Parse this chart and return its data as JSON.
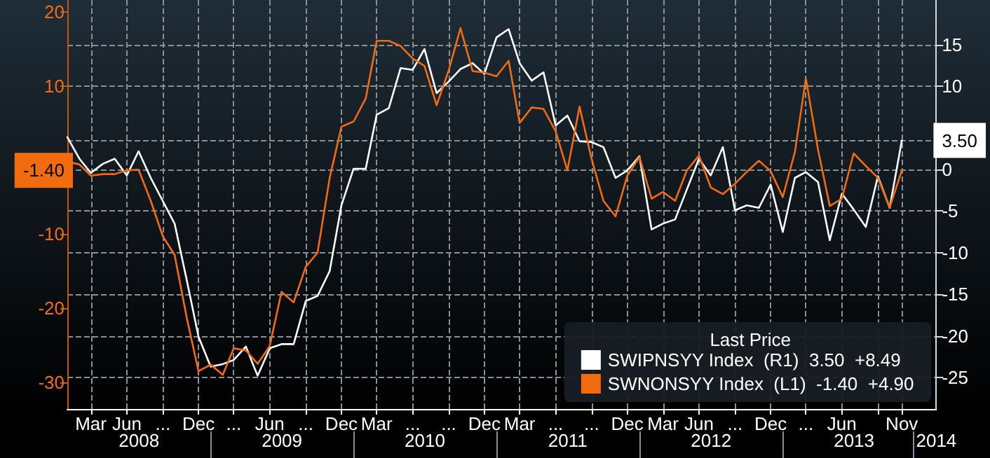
{
  "chart_data": {
    "type": "line",
    "x": [
      "2008-01",
      "2008-02",
      "2008-03",
      "2008-04",
      "2008-05",
      "2008-06",
      "2008-07",
      "2008-08",
      "2008-09",
      "2008-10",
      "2008-11",
      "2008-12",
      "2009-01",
      "2009-02",
      "2009-03",
      "2009-04",
      "2009-05",
      "2009-06",
      "2009-07",
      "2009-08",
      "2009-09",
      "2009-10",
      "2009-11",
      "2009-12",
      "2010-01",
      "2010-02",
      "2010-03",
      "2010-04",
      "2010-05",
      "2010-06",
      "2010-07",
      "2010-08",
      "2010-09",
      "2010-10",
      "2010-11",
      "2010-12",
      "2011-01",
      "2011-02",
      "2011-03",
      "2011-04",
      "2011-05",
      "2011-06",
      "2011-07",
      "2011-08",
      "2011-09",
      "2011-10",
      "2011-11",
      "2011-12",
      "2012-01",
      "2012-02",
      "2012-03",
      "2012-04",
      "2012-05",
      "2012-06",
      "2012-07",
      "2012-08",
      "2012-09",
      "2012-10",
      "2012-11",
      "2012-12",
      "2013-01",
      "2013-02",
      "2013-03",
      "2013-04",
      "2013-05",
      "2013-06",
      "2013-07",
      "2013-08",
      "2013-09",
      "2013-10",
      "2013-11"
    ],
    "series": [
      {
        "name": "SWIPNSYY Index  (R1)  3.50  +8.49",
        "color": "#ffffff",
        "axis": "y2",
        "values": [
          3.9,
          1.3,
          -0.4,
          0.7,
          1.3,
          -0.7,
          2.2,
          -1.0,
          -3.8,
          -6.5,
          -13.3,
          -20.1,
          -23.7,
          -23.4,
          -22.9,
          -21.3,
          -24.8,
          -21.5,
          -21.0,
          -21.0,
          -15.8,
          -15.2,
          -12.2,
          -4.3,
          0.1,
          0.1,
          6.6,
          7.4,
          12.2,
          12.0,
          14.5,
          9.2,
          10.6,
          12.1,
          12.8,
          11.5,
          15.9,
          16.9,
          12.8,
          10.7,
          11.7,
          5.3,
          6.5,
          3.4,
          3.3,
          2.7,
          -1.0,
          -0.1,
          1.6,
          -7.2,
          -6.5,
          -6.0,
          -2.4,
          1.3,
          -0.7,
          2.7,
          -4.9,
          -4.3,
          -4.6,
          -1.8,
          -7.5,
          -1.0,
          -0.3,
          -1.5,
          -8.5,
          -2.9,
          -4.8,
          -6.9,
          -0.8,
          -4.6,
          3.5
        ]
      },
      {
        "name": "SWNONSYY Index  (L1)  -1.40  +4.90",
        "color": "#f26b0f",
        "values": [
          -0.2,
          -0.6,
          -2.1,
          -1.9,
          -1.9,
          -1.4,
          -1.3,
          -5.5,
          -10.3,
          -12.8,
          -21.3,
          -28.5,
          -27.6,
          -29,
          -25.4,
          -25.7,
          -27.5,
          -25.1,
          -17.8,
          -19.2,
          -14.4,
          -12.5,
          -2.4,
          4.5,
          5.2,
          8.3,
          16.1,
          16.1,
          15.4,
          13.7,
          12.7,
          7.4,
          12.1,
          17.8,
          12,
          11.8,
          11.3,
          13.4,
          5.0,
          7.1,
          6.9,
          3.9,
          -1.4,
          7.2,
          0.1,
          -5.5,
          -7.6,
          -2.1,
          0.4,
          -5.2,
          -4.3,
          -5.5,
          -1.4,
          0.6,
          -3.7,
          -4.6,
          -3.2,
          -1.6,
          -0.1,
          -1.5,
          -5.0,
          1.1,
          11.0,
          1.4,
          -6.2,
          -5.2,
          0.9,
          -0.8,
          -2.4,
          -6.4,
          -1.4
        ]
      }
    ],
    "xlim": [
      "2008-01",
      "2014-01-28"
    ],
    "xticks": [
      {
        "value": "2008-03",
        "label": "Mar"
      },
      {
        "value": "2008-06",
        "label": "Jun"
      },
      {
        "value": "2008-09",
        "label": "..."
      },
      {
        "value": "2008-12",
        "label": "Dec"
      },
      {
        "value": "2009-03",
        "label": "..."
      },
      {
        "value": "2009-06",
        "label": "Jun"
      },
      {
        "value": "2009-09",
        "label": "..."
      },
      {
        "value": "2009-12",
        "label": "Dec"
      },
      {
        "value": "2010-03",
        "label": "Mar"
      },
      {
        "value": "2010-06",
        "label": "..."
      },
      {
        "value": "2010-09",
        "label": "..."
      },
      {
        "value": "2010-12",
        "label": "Dec"
      },
      {
        "value": "2011-03",
        "label": "Mar"
      },
      {
        "value": "2011-06",
        "label": "..."
      },
      {
        "value": "2011-09",
        "label": "..."
      },
      {
        "value": "2011-12",
        "label": "Dec"
      },
      {
        "value": "2012-03",
        "label": "Mar"
      },
      {
        "value": "2012-06",
        "label": "Jun"
      },
      {
        "value": "2012-09",
        "label": "..."
      },
      {
        "value": "2012-12",
        "label": "Dec"
      },
      {
        "value": "2013-03",
        "label": "..."
      },
      {
        "value": "2013-06",
        "label": "Jun"
      },
      {
        "value": "2013-09",
        "label": null
      },
      {
        "value": "2013-11",
        "label": "Nov"
      }
    ],
    "x2lim": [
      "2008-01",
      "2014-01-28"
    ],
    "x2ticks": [
      {
        "value": "2008-07-02",
        "label": "2008"
      },
      {
        "value": "2009-07-02",
        "label": "2009"
      },
      {
        "value": "2010-07-02",
        "label": "2010"
      },
      {
        "value": "2011-07-02",
        "label": "2011"
      },
      {
        "value": "2012-07-02",
        "label": "2012"
      },
      {
        "value": "2013-07-02",
        "label": "2013"
      },
      {
        "value": "2014-01-28",
        "label": "2014"
      }
    ],
    "ylim": [
      -33.6,
      21.6
    ],
    "yticks": [
      -30,
      -20,
      -10,
      {
        "value": -1.4,
        "label": "-1.40"
      },
      10,
      20
    ],
    "y2lim": [
      -28.8,
      20.4
    ],
    "y2ticks": [
      -25,
      -20,
      -15,
      -10,
      -5,
      0,
      {
        "value": 3.5,
        "label": "3.50"
      },
      10,
      15
    ],
    "grid": true,
    "legend": "bottom right",
    "legend_title": "Last Price",
    "marker": "none",
    "line_style": "solid"
  }
}
